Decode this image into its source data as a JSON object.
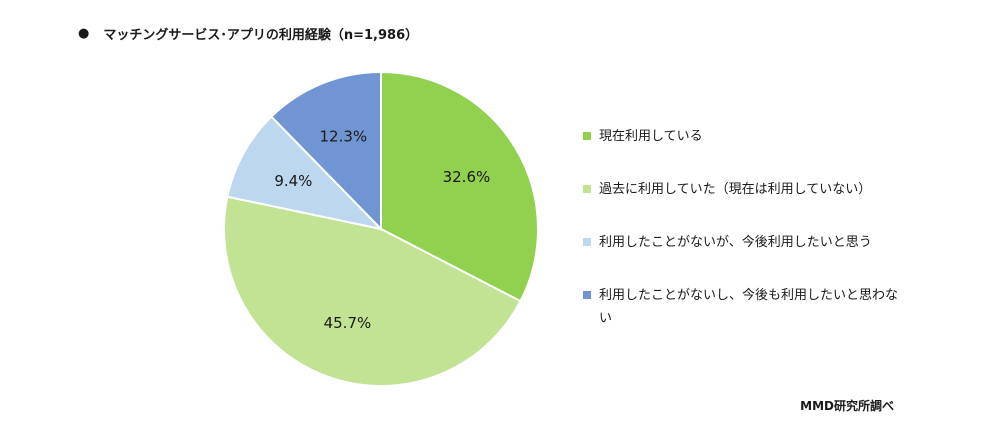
{
  "title": "マッチングサービス･アプリの利用経験（n=1,986）",
  "bullet": "●",
  "source": "MMD研究所調べ",
  "chart_data": {
    "type": "pie",
    "title": "マッチングサービス･アプリの利用経験（n=1,986）",
    "n": "1,986",
    "slices": [
      {
        "label": "現在利用している",
        "value": 32.6,
        "display": "32.6%",
        "color": "#92d050"
      },
      {
        "label": "過去に利用していた（現在は利用していない）",
        "value": 45.7,
        "display": "45.7%",
        "color": "#c2e394"
      },
      {
        "label": "利用したことがないが、今後利用したいと思う",
        "value": 9.4,
        "display": "9.4%",
        "color": "#bdd7ee"
      },
      {
        "label": "利用したことがないし、今後も利用したいと思わない",
        "value": 12.3,
        "display": "12.3%",
        "color": "#7195d2"
      }
    ],
    "legend_position": "right",
    "start_angle": "12 o'clock",
    "direction": "clockwise"
  }
}
